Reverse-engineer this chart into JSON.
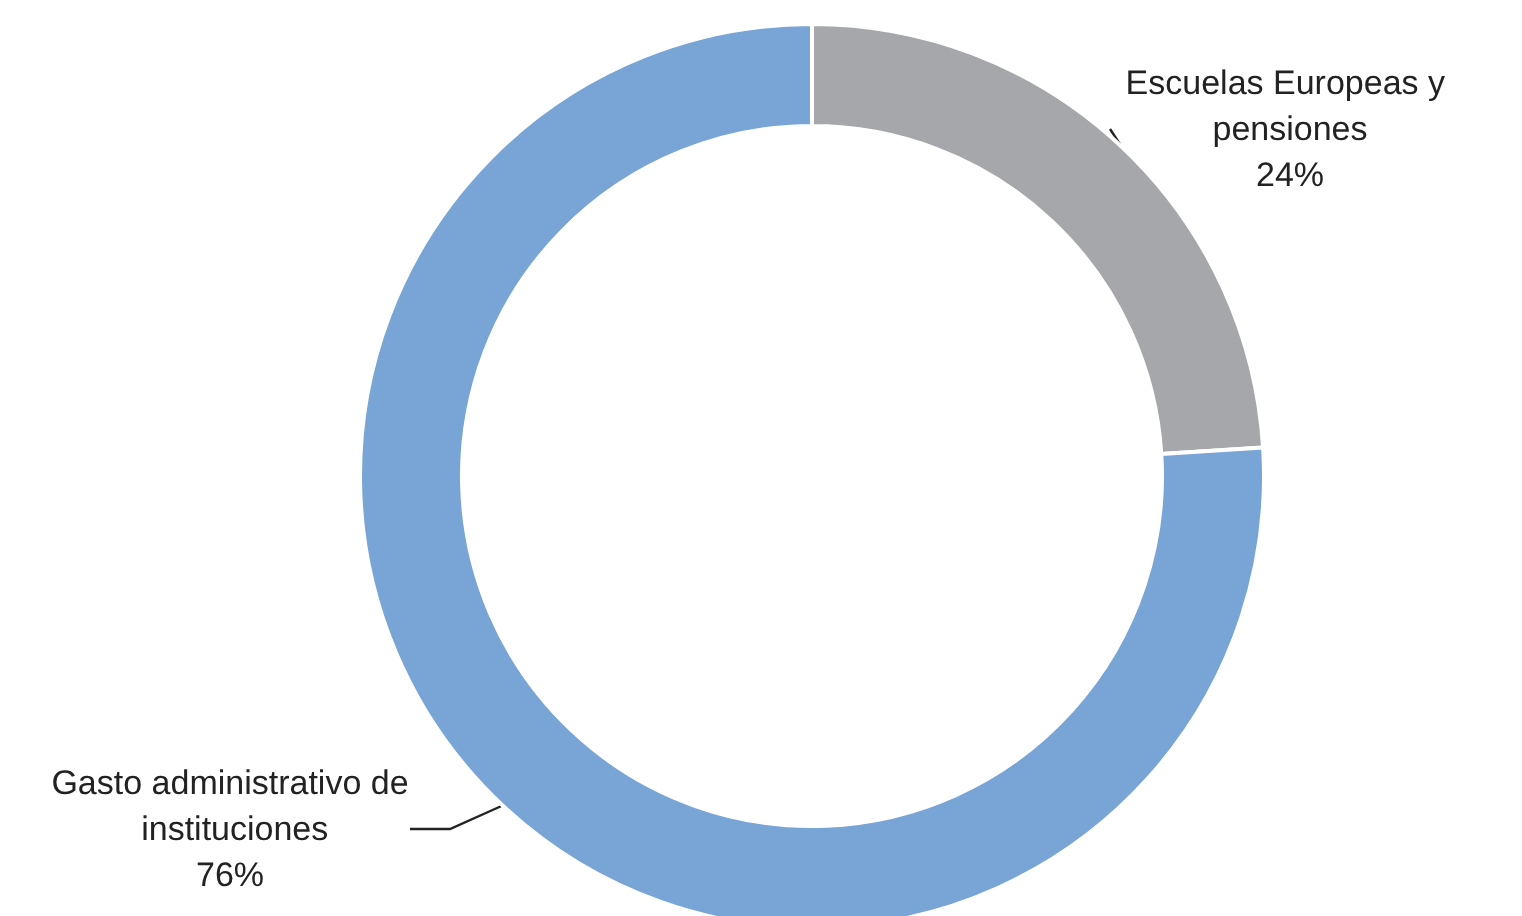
{
  "chart_data": {
    "type": "donut",
    "categories": [
      "Escuelas Europeas y pensiones",
      "Gasto administrativo de instituciones"
    ],
    "values": [
      24,
      76
    ],
    "colors": [
      "#a6a7aa",
      "#78a5d6"
    ],
    "value_labels": [
      "24%",
      "76%"
    ],
    "legend": false
  }
}
